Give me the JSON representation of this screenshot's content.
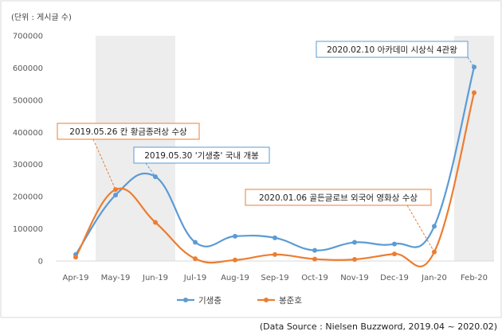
{
  "unit_label": "(단위 : 게시글 수)",
  "source": "(Data Source : Nielsen Buzzword, 2019.04 ~ 2020.02)",
  "chart_data": {
    "type": "line",
    "categories": [
      "Apr-19",
      "May-19",
      "Jun-19",
      "Jul-19",
      "Aug-19",
      "Sep-19",
      "Oct-19",
      "Nov-19",
      "Dec-19",
      "Jan-20",
      "Feb-20"
    ],
    "y_ticks": [
      "0",
      "100000",
      "200000",
      "300000",
      "400000",
      "500000",
      "600000",
      "700000"
    ],
    "ylim": [
      0,
      700000
    ],
    "grid": false,
    "legend_position": "bottom",
    "shaded_ranges": [
      [
        "May-19",
        "Jun-19"
      ],
      [
        "Feb-20",
        "Feb-20"
      ]
    ],
    "series": [
      {
        "name": "기생충",
        "color": "#5b9bd5",
        "values": [
          20000,
          205000,
          262000,
          58000,
          77000,
          72000,
          33000,
          58000,
          53000,
          108000,
          603000
        ]
      },
      {
        "name": "봉준호",
        "color": "#ed7d31",
        "values": [
          12000,
          222000,
          120000,
          7000,
          3000,
          20000,
          6000,
          5000,
          22000,
          28000,
          523000
        ]
      }
    ],
    "annotations": [
      {
        "text": "2020.02.10  아카데미 시상식 4관왕",
        "series": 0,
        "index": 10,
        "border": "#5b9bd5"
      },
      {
        "text": "2019.05.26  칸 황금종려상 수상",
        "series": 1,
        "index": 1,
        "border": "#ed7d31"
      },
      {
        "text": "2019.05.30  '기생충' 국내 개봉",
        "series": 0,
        "index": 2,
        "border": "#5b9bd5"
      },
      {
        "text": "2020.01.06  골든글로브 외국어 영화상 수상",
        "series": 1,
        "index": 9,
        "border": "#ed7d31"
      }
    ]
  }
}
